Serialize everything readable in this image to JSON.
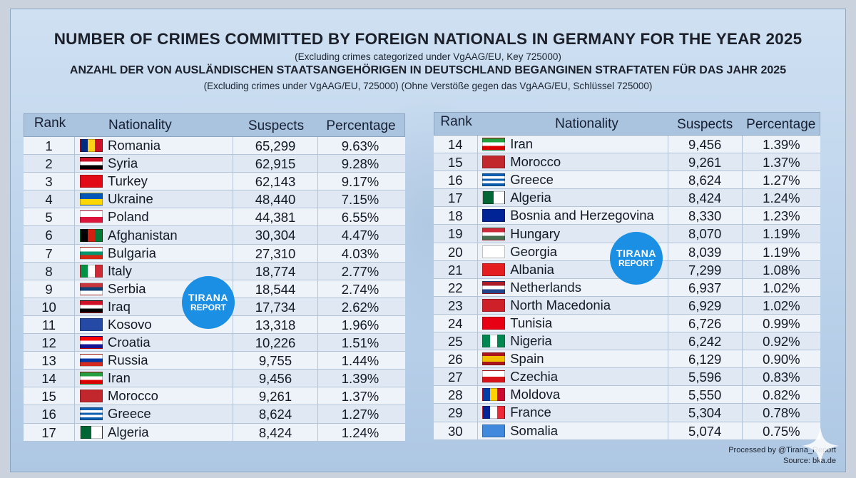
{
  "header": {
    "title": "NUMBER OF CRIMES COMMITTED BY FOREIGN NATIONALS IN GERMANY FOR THE YEAR 2025",
    "subtitle1": "(Excluding crimes categorized under VgAAG/EU, Key 725000)",
    "title_de": "ANZAHL DER VON AUSLÄNDISCHEN STAATSANGEHÖRIGEN IN DEUTSCHLAND BEGANGINEN STRAFTATEN FÜR DAS JAHR 2025",
    "subtitle2": "(Excluding crimes under VgAAG/EU, 725000) (Ohne Verstöße gegen das VgAAG/EU, Schlüssel 725000)"
  },
  "columns": {
    "rank": "Rank",
    "nationality": "Nationality",
    "suspects": "Suspects",
    "percentage": "Percentage"
  },
  "left_rows": [
    {
      "rank": "1",
      "name": "Romania",
      "suspects": "65,299",
      "pct": "9.63%",
      "flag": "romania-flag-icon"
    },
    {
      "rank": "2",
      "name": "Syria",
      "suspects": "62,915",
      "pct": "9.28%",
      "flag": "syria-flag-icon"
    },
    {
      "rank": "3",
      "name": "Turkey",
      "suspects": "62,143",
      "pct": "9.17%",
      "flag": "turkey-flag-icon"
    },
    {
      "rank": "4",
      "name": "Ukraine",
      "suspects": "48,440",
      "pct": "7.15%",
      "flag": "ukraine-flag-icon"
    },
    {
      "rank": "5",
      "name": "Poland",
      "suspects": "44,381",
      "pct": "6.55%",
      "flag": "poland-flag-icon"
    },
    {
      "rank": "6",
      "name": "Afghanistan",
      "suspects": "30,304",
      "pct": "4.47%",
      "flag": "afghanistan-flag-icon"
    },
    {
      "rank": "7",
      "name": "Bulgaria",
      "suspects": "27,310",
      "pct": "4.03%",
      "flag": "bulgaria-flag-icon"
    },
    {
      "rank": "8",
      "name": "Italy",
      "suspects": "18,774",
      "pct": "2.77%",
      "flag": "italy-flag-icon"
    },
    {
      "rank": "9",
      "name": "Serbia",
      "suspects": "18,544",
      "pct": "2.74%",
      "flag": "serbia-flag-icon"
    },
    {
      "rank": "10",
      "name": "Iraq",
      "suspects": "17,734",
      "pct": "2.62%",
      "flag": "iraq-flag-icon"
    },
    {
      "rank": "11",
      "name": "Kosovo",
      "suspects": "13,318",
      "pct": "1.96%",
      "flag": "kosovo-flag-icon"
    },
    {
      "rank": "12",
      "name": "Croatia",
      "suspects": "10,226",
      "pct": "1.51%",
      "flag": "croatia-flag-icon"
    },
    {
      "rank": "13",
      "name": "Russia",
      "suspects": "9,755",
      "pct": "1.44%",
      "flag": "russia-flag-icon"
    },
    {
      "rank": "14",
      "name": "Iran",
      "suspects": "9,456",
      "pct": "1.39%",
      "flag": "iran-flag-icon"
    },
    {
      "rank": "15",
      "name": "Morocco",
      "suspects": "9,261",
      "pct": "1.37%",
      "flag": "morocco-flag-icon"
    },
    {
      "rank": "16",
      "name": "Greece",
      "suspects": "8,624",
      "pct": "1.27%",
      "flag": "greece-flag-icon"
    },
    {
      "rank": "17",
      "name": "Algeria",
      "suspects": "8,424",
      "pct": "1.24%",
      "flag": "algeria-flag-icon"
    }
  ],
  "right_rows": [
    {
      "rank": "14",
      "name": "Iran",
      "suspects": "9,456",
      "pct": "1.39%",
      "flag": "iran-flag-icon"
    },
    {
      "rank": "15",
      "name": "Morocco",
      "suspects": "9,261",
      "pct": "1.37%",
      "flag": "morocco-flag-icon"
    },
    {
      "rank": "16",
      "name": "Greece",
      "suspects": "8,624",
      "pct": "1.27%",
      "flag": "greece-flag-icon"
    },
    {
      "rank": "17",
      "name": "Algeria",
      "suspects": "8,424",
      "pct": "1.24%",
      "flag": "algeria-flag-icon"
    },
    {
      "rank": "18",
      "name": "Bosnia and Herzegovina",
      "suspects": "8,330",
      "pct": "1.23%",
      "flag": "bosnia-flag-icon"
    },
    {
      "rank": "19",
      "name": "Hungary",
      "suspects": "8,070",
      "pct": "1.19%",
      "flag": "hungary-flag-icon"
    },
    {
      "rank": "20",
      "name": "Georgia",
      "suspects": "8,039",
      "pct": "1.19%",
      "flag": "georgia-flag-icon"
    },
    {
      "rank": "21",
      "name": "Albania",
      "suspects": "7,299",
      "pct": "1.08%",
      "flag": "albania-flag-icon"
    },
    {
      "rank": "22",
      "name": "Netherlands",
      "suspects": "6,937",
      "pct": "1.02%",
      "flag": "netherlands-flag-icon"
    },
    {
      "rank": "23",
      "name": "North Macedonia",
      "suspects": "6,929",
      "pct": "1.02%",
      "flag": "north-macedonia-flag-icon"
    },
    {
      "rank": "24",
      "name": "Tunisia",
      "suspects": "6,726",
      "pct": "0.99%",
      "flag": "tunisia-flag-icon"
    },
    {
      "rank": "25",
      "name": "Nigeria",
      "suspects": "6,242",
      "pct": "0.92%",
      "flag": "nigeria-flag-icon"
    },
    {
      "rank": "26",
      "name": "Spain",
      "suspects": "6,129",
      "pct": "0.90%",
      "flag": "spain-flag-icon"
    },
    {
      "rank": "27",
      "name": "Czechia",
      "suspects": "5,596",
      "pct": "0.83%",
      "flag": "czechia-flag-icon"
    },
    {
      "rank": "28",
      "name": "Moldova",
      "suspects": "5,550",
      "pct": "0.82%",
      "flag": "moldova-flag-icon"
    },
    {
      "rank": "29",
      "name": "France",
      "suspects": "5,304",
      "pct": "0.78%",
      "flag": "france-flag-icon"
    },
    {
      "rank": "30",
      "name": "Somalia",
      "suspects": "5,074",
      "pct": "0.75%",
      "flag": "somalia-flag-icon"
    }
  ],
  "badge": {
    "line1": "TIRANA",
    "line2": "REPORT"
  },
  "footer": {
    "processed": "Processed by @Tirana_Report",
    "source": "Source: bka.de"
  },
  "colors": {
    "badge": "#1a8fe3",
    "header_bg": "#aac3df",
    "panel": "#bcd3eb"
  }
}
